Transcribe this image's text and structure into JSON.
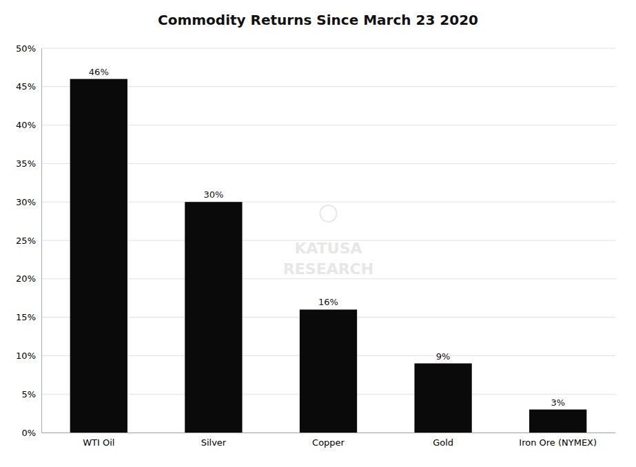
{
  "chart_data": {
    "type": "bar",
    "title": "Commodity Returns Since March 23 2020",
    "categories": [
      "WTI Oil",
      "Silver",
      "Copper",
      "Gold",
      "Iron Ore (NYMEX)"
    ],
    "values": [
      0.46,
      0.3,
      0.16,
      0.09,
      0.03
    ],
    "value_labels": [
      "46%",
      "30%",
      "16%",
      "9%",
      "3%"
    ],
    "data_labels": true,
    "color": "#0a0a0a",
    "ylim": [
      0,
      0.5
    ],
    "yticks": [
      {
        "value": 0.0,
        "label": "0%"
      },
      {
        "value": 0.05,
        "label": "5%"
      },
      {
        "value": 0.1,
        "label": "10%"
      },
      {
        "value": 0.15,
        "label": "15%"
      },
      {
        "value": 0.2,
        "label": "20%"
      },
      {
        "value": 0.25,
        "label": "25%"
      },
      {
        "value": 0.3,
        "label": "30%"
      },
      {
        "value": 0.35,
        "label": "35%"
      },
      {
        "value": 0.4,
        "label": "40%"
      },
      {
        "value": 0.45,
        "label": "45%"
      },
      {
        "value": 0.5,
        "label": "50%"
      }
    ],
    "grid": true,
    "annotations": [
      "KATUSA\nRESEARCH"
    ]
  }
}
